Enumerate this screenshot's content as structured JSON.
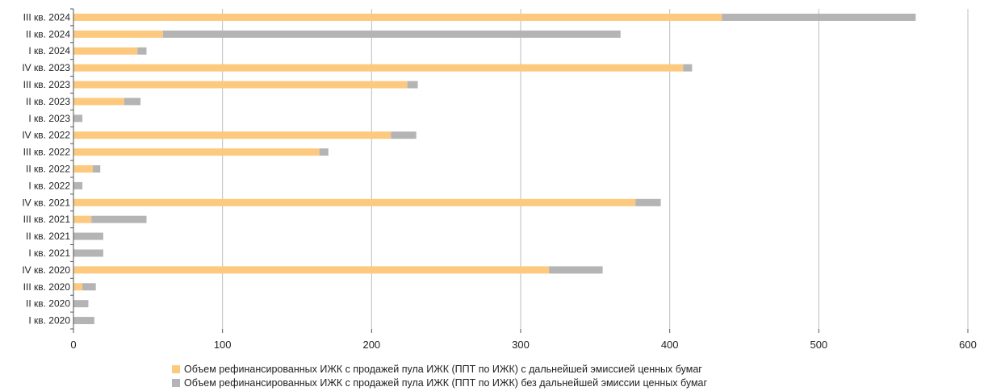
{
  "chart_data": {
    "type": "bar",
    "orientation": "horizontal",
    "stacked": true,
    "categories": [
      "III кв. 2024",
      "II кв. 2024",
      "I кв. 2024",
      "IV кв. 2023",
      "III кв. 2023",
      "II кв. 2023",
      "I кв. 2023",
      "IV кв. 2022",
      "III кв. 2022",
      "II кв. 2022",
      "I кв. 2022",
      "IV кв. 2021",
      "III кв. 2021",
      "II кв. 2021",
      "I кв. 2021",
      "IV кв. 2020",
      "III кв. 2020",
      "II кв. 2020",
      "I кв. 2020"
    ],
    "series": [
      {
        "name": "Объем рефинансированных ИЖК с продажей пула ИЖК (ППТ по ИЖК) с дальнейшей эмиссией ценных бумаг",
        "color": "#FCC97F",
        "values": [
          435,
          60,
          43,
          409,
          224,
          34,
          0,
          213,
          165,
          13,
          0,
          377,
          12,
          0,
          0,
          319,
          6,
          0,
          0
        ]
      },
      {
        "name": "Объем рефинансированных ИЖК с продажей пула ИЖК (ППТ по ИЖК) без дальнейшей эмиссии ценных бумаг",
        "color": "#B4B4B4",
        "values": [
          130,
          307,
          6,
          6,
          7,
          11,
          6,
          17,
          6,
          5,
          6,
          17,
          37,
          20,
          20,
          36,
          9,
          10,
          14
        ]
      }
    ],
    "xlim": [
      0,
      600
    ],
    "xticks": [
      "0",
      "100",
      "200",
      "300",
      "400",
      "500",
      "600"
    ],
    "xlabel": "",
    "ylabel": "",
    "title": "",
    "grid": "vertical",
    "legend_position": "bottom"
  }
}
